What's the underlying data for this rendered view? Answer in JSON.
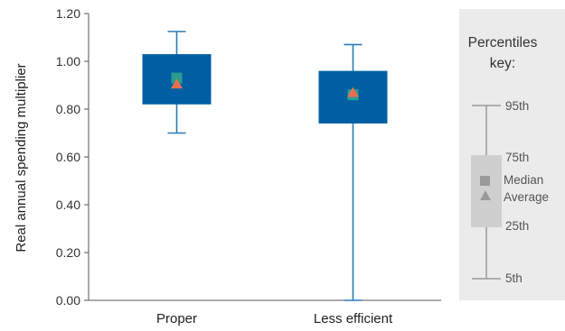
{
  "chart_data": {
    "type": "boxplot",
    "ylabel": "Real annual spending multiplier",
    "ylim": [
      0,
      1.2
    ],
    "yticks": [
      "0.00",
      "0.20",
      "0.40",
      "0.60",
      "0.80",
      "1.00",
      "1.20"
    ],
    "categories": [
      "Proper",
      "Less efficient"
    ],
    "boxes": [
      {
        "category": "Proper",
        "p5": 0.7,
        "p25": 0.82,
        "median": 0.93,
        "average": 0.905,
        "p75": 1.03,
        "p95": 1.125
      },
      {
        "category": "Less efficient",
        "p5": 0.0,
        "p25": 0.74,
        "median": 0.86,
        "average": 0.87,
        "p75": 0.96,
        "p95": 1.07
      }
    ],
    "colors": {
      "box": "#005fa3",
      "whisker": "#2b7bb9",
      "median": "#2a9d8f",
      "average": "#e76f51"
    },
    "legend": {
      "placement": "right",
      "title": "Percentiles key:",
      "p95": "95th",
      "p75": "75th",
      "median": "Median",
      "average": "Average",
      "p25": "25th",
      "p5": "5th"
    }
  }
}
